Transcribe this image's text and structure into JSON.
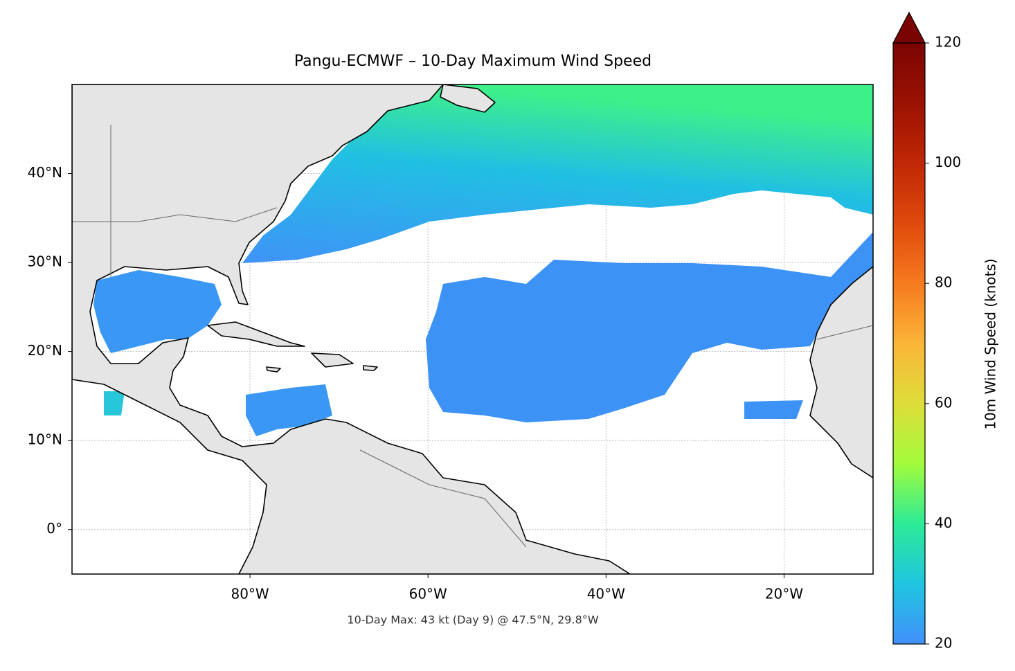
{
  "title": "Pangu-ECMWF – 10-Day Maximum Wind Speed",
  "annotation": "10-Day Max: 43 kt (Day 9) @ 47.5°N, 29.8°W",
  "map": {
    "xlim": [
      -100,
      -10
    ],
    "ylim": [
      -5,
      50
    ],
    "xticks": [
      {
        "value": -80,
        "label": "80°W"
      },
      {
        "value": -60,
        "label": "60°W"
      },
      {
        "value": -40,
        "label": "40°W"
      },
      {
        "value": -20,
        "label": "20°W"
      }
    ],
    "yticks": [
      {
        "value": 0,
        "label": "0°"
      },
      {
        "value": 10,
        "label": "10°N"
      },
      {
        "value": 20,
        "label": "20°N"
      },
      {
        "value": 30,
        "label": "30°N"
      },
      {
        "value": 40,
        "label": "40°N"
      }
    ],
    "grid": true
  },
  "colorbar": {
    "label": "10m Wind Speed (knots)",
    "lim": [
      20,
      120
    ],
    "ticks": [
      20,
      40,
      60,
      80,
      100,
      120
    ]
  }
}
